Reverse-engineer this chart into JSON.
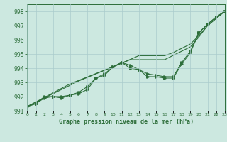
{
  "title": "Graphe pression niveau de la mer (hPa)",
  "background_color": "#cce8e0",
  "grid_color": "#aacccc",
  "line_color": "#2d6e3a",
  "x_values": [
    0,
    1,
    2,
    3,
    4,
    5,
    6,
    7,
    8,
    9,
    10,
    11,
    12,
    13,
    14,
    15,
    16,
    17,
    18,
    19,
    20,
    21,
    22,
    23
  ],
  "line_zigzag": [
    991.3,
    991.5,
    991.9,
    992.0,
    991.9,
    992.1,
    992.2,
    992.5,
    993.3,
    993.5,
    994.1,
    994.4,
    994.0,
    993.9,
    993.4,
    993.4,
    993.3,
    993.3,
    994.3,
    995.1,
    996.5,
    997.1,
    997.6,
    998.0
  ],
  "line_smooth1": [
    991.3,
    991.5,
    992.0,
    992.0,
    992.0,
    992.1,
    992.3,
    992.7,
    993.3,
    993.6,
    994.1,
    994.4,
    994.2,
    993.9,
    993.6,
    993.5,
    993.4,
    993.4,
    994.4,
    995.2,
    996.5,
    997.1,
    997.6,
    998.0
  ],
  "line_straight1": [
    991.3,
    991.6,
    991.9,
    992.2,
    992.5,
    992.8,
    993.1,
    993.35,
    993.6,
    993.85,
    994.1,
    994.35,
    994.6,
    994.6,
    994.6,
    994.6,
    994.6,
    994.9,
    995.2,
    995.5,
    996.2,
    997.0,
    997.5,
    998.0
  ],
  "line_straight2": [
    991.3,
    991.62,
    991.94,
    992.26,
    992.58,
    992.9,
    993.14,
    993.38,
    993.62,
    993.86,
    994.1,
    994.36,
    994.62,
    994.88,
    994.88,
    994.88,
    994.88,
    995.1,
    995.4,
    995.7,
    996.3,
    997.0,
    997.5,
    998.0
  ],
  "ylim": [
    991.0,
    998.5
  ],
  "yticks": [
    991,
    992,
    993,
    994,
    995,
    996,
    997,
    998
  ],
  "xlim": [
    0,
    23
  ],
  "xticks": [
    0,
    1,
    2,
    3,
    4,
    5,
    6,
    7,
    8,
    9,
    10,
    11,
    12,
    13,
    14,
    15,
    16,
    17,
    18,
    19,
    20,
    21,
    22,
    23
  ]
}
